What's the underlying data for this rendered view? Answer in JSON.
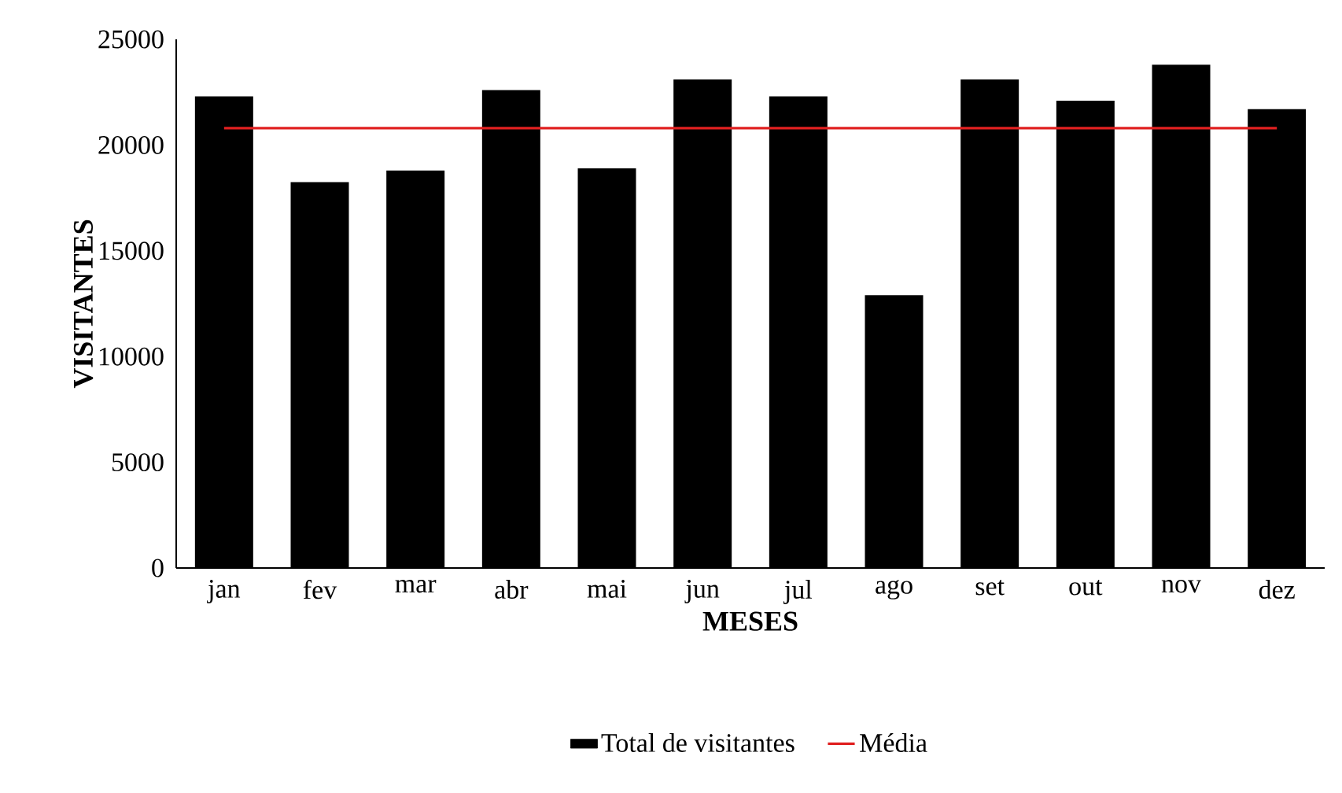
{
  "chart_data": {
    "type": "bar",
    "xlabel": "MESES",
    "ylabel": "VISITANTES",
    "categories": [
      "jan",
      "fev",
      "mar",
      "abr",
      "mai",
      "jun",
      "jul",
      "ago",
      "set",
      "out",
      "nov",
      "dez"
    ],
    "series": [
      {
        "name": "Total de visitantes",
        "color": "#000000",
        "values": [
          22300,
          18250,
          18800,
          22600,
          18900,
          23100,
          22300,
          12900,
          23100,
          22100,
          23800,
          21700
        ]
      },
      {
        "name": "Média",
        "type": "line",
        "color": "#e02020",
        "values": [
          20800,
          20800,
          20800,
          20800,
          20800,
          20800,
          20800,
          20800,
          20800,
          20800,
          20800,
          20800
        ]
      }
    ],
    "ylim": [
      0,
      25000
    ],
    "yticks": [
      0,
      5000,
      10000,
      15000,
      20000,
      25000
    ],
    "grid": false,
    "legend": "bottom",
    "marker": "none"
  }
}
